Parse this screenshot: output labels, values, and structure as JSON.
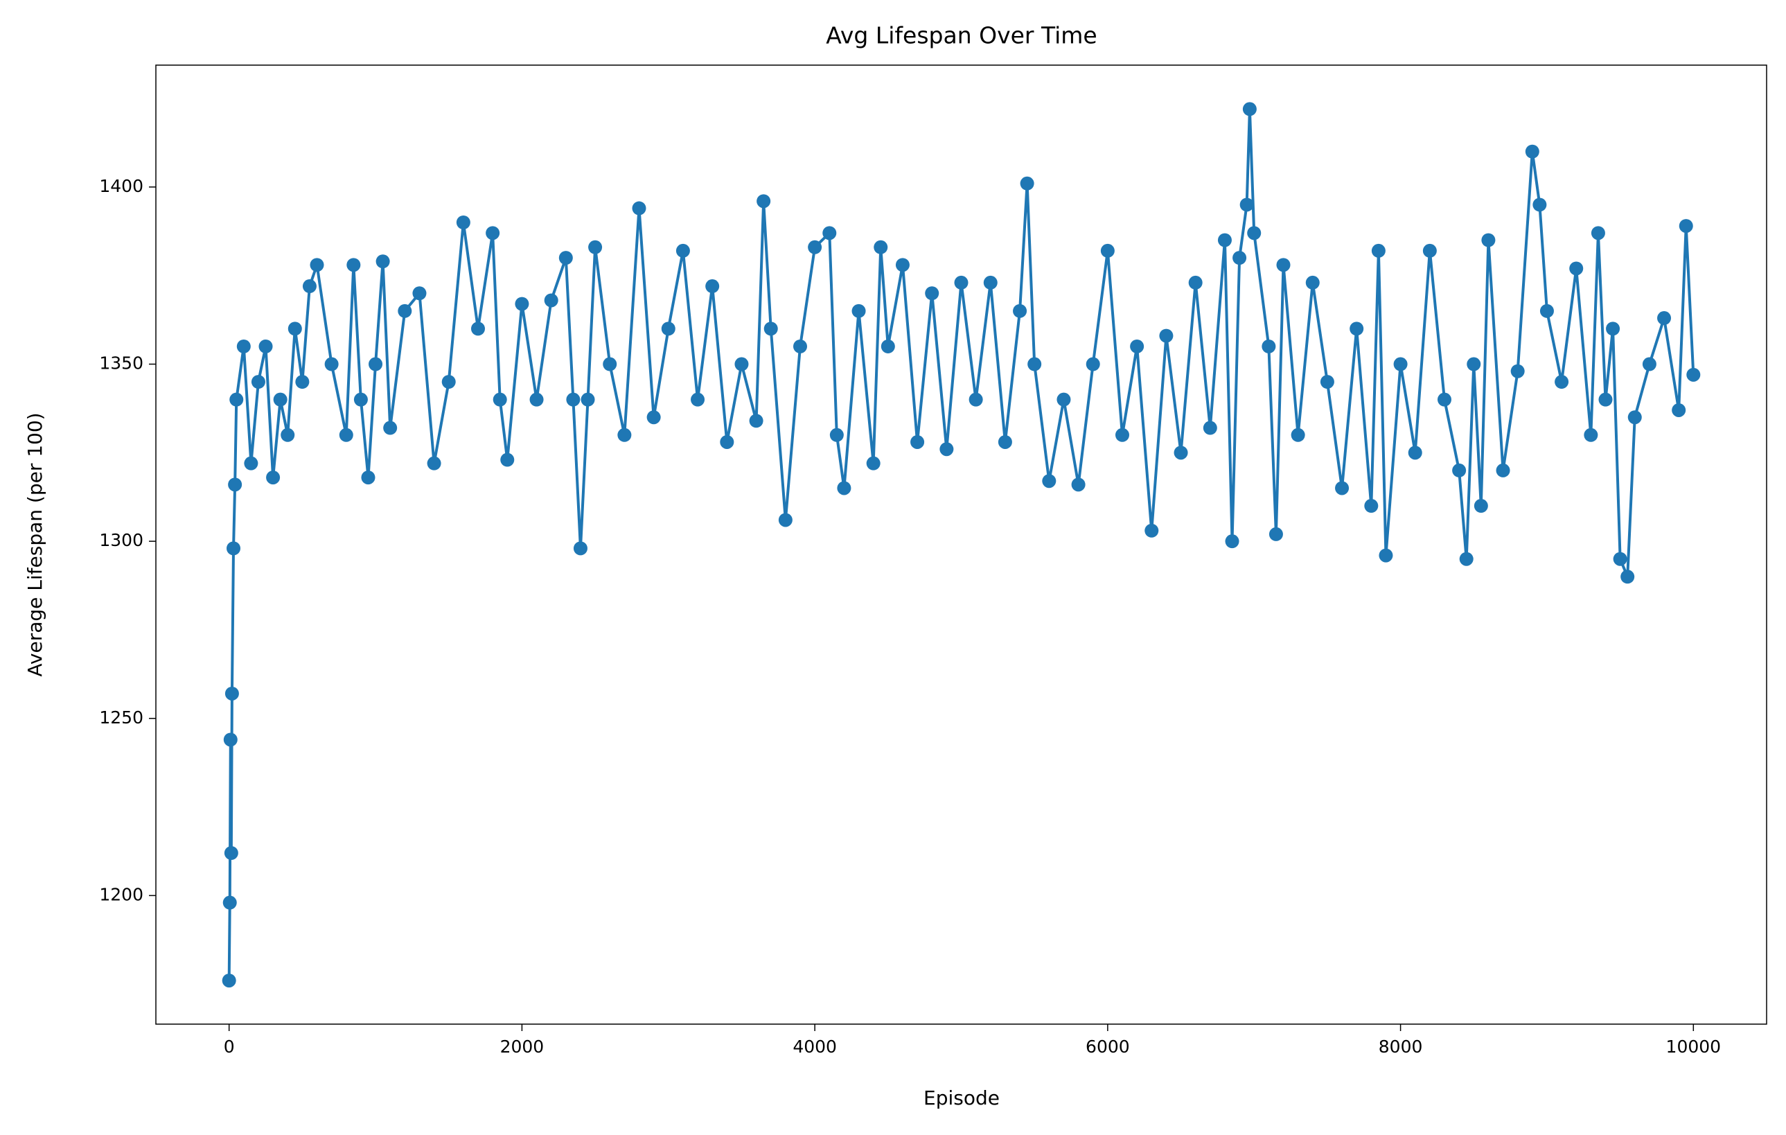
{
  "chart_data": {
    "type": "line",
    "title": "Avg Lifespan Over Time",
    "x_label": "Episode",
    "y_label": "Average Lifespan (per 100)",
    "series": [
      {
        "name": "Avg Lifespan",
        "color": "#1f77b4",
        "x": [
          0,
          5,
          10,
          15,
          20,
          30,
          40,
          50,
          100,
          150,
          200,
          250,
          300,
          350,
          400,
          450,
          500,
          550,
          600,
          700,
          800,
          850,
          900,
          950,
          1000,
          1050,
          1100,
          1200,
          1300,
          1400,
          1500,
          1600,
          1700,
          1800,
          1850,
          1900,
          2000,
          2100,
          2200,
          2300,
          2350,
          2400,
          2450,
          2500,
          2600,
          2700,
          2800,
          2900,
          3000,
          3100,
          3200,
          3300,
          3400,
          3500,
          3600,
          3650,
          3700,
          3800,
          3900,
          4000,
          4100,
          4150,
          4200,
          4300,
          4400,
          4450,
          4500,
          4600,
          4700,
          4800,
          4900,
          5000,
          5100,
          5200,
          5300,
          5400,
          5450,
          5500,
          5600,
          5700,
          5800,
          5900,
          6000,
          6100,
          6200,
          6300,
          6400,
          6500,
          6600,
          6700,
          6800,
          6850,
          6900,
          6950,
          6970,
          7000,
          7100,
          7150,
          7200,
          7300,
          7400,
          7500,
          7600,
          7700,
          7800,
          7850,
          7900,
          8000,
          8100,
          8200,
          8300,
          8400,
          8450,
          8500,
          8550,
          8600,
          8700,
          8800,
          8900,
          8950,
          9000,
          9100,
          9200,
          9300,
          9350,
          9400,
          9450,
          9500,
          9550,
          9600,
          9700,
          9800,
          9900,
          9950,
          10000
        ],
        "values": [
          1176,
          1198,
          1244,
          1212,
          1257,
          1298,
          1316,
          1340,
          1355,
          1322,
          1345,
          1355,
          1318,
          1340,
          1330,
          1360,
          1345,
          1372,
          1378,
          1350,
          1330,
          1378,
          1340,
          1318,
          1350,
          1379,
          1332,
          1365,
          1370,
          1322,
          1345,
          1390,
          1360,
          1387,
          1340,
          1323,
          1367,
          1340,
          1368,
          1380,
          1340,
          1298,
          1340,
          1383,
          1350,
          1330,
          1394,
          1335,
          1360,
          1382,
          1340,
          1372,
          1328,
          1350,
          1334,
          1396,
          1360,
          1306,
          1355,
          1383,
          1387,
          1330,
          1315,
          1365,
          1322,
          1383,
          1355,
          1378,
          1328,
          1370,
          1326,
          1373,
          1340,
          1373,
          1328,
          1365,
          1401,
          1350,
          1317,
          1340,
          1316,
          1350,
          1382,
          1330,
          1355,
          1303,
          1358,
          1325,
          1373,
          1332,
          1385,
          1300,
          1380,
          1395,
          1422,
          1387,
          1355,
          1302,
          1378,
          1330,
          1373,
          1345,
          1315,
          1360,
          1310,
          1382,
          1296,
          1350,
          1325,
          1382,
          1340,
          1320,
          1295,
          1350,
          1310,
          1385,
          1320,
          1348,
          1410,
          1395,
          1365,
          1345,
          1377,
          1330,
          1387,
          1340,
          1360,
          1295,
          1290,
          1335,
          1350,
          1363,
          1337,
          1389,
          1347
        ]
      }
    ],
    "xlim": [
      -500,
      10500
    ],
    "xticks": [
      0,
      2000,
      4000,
      6000,
      8000,
      10000
    ],
    "ylim": [
      1163.7,
      1434.4
    ],
    "yticks": [
      1200,
      1250,
      1300,
      1350,
      1400
    ],
    "grid": false
  }
}
